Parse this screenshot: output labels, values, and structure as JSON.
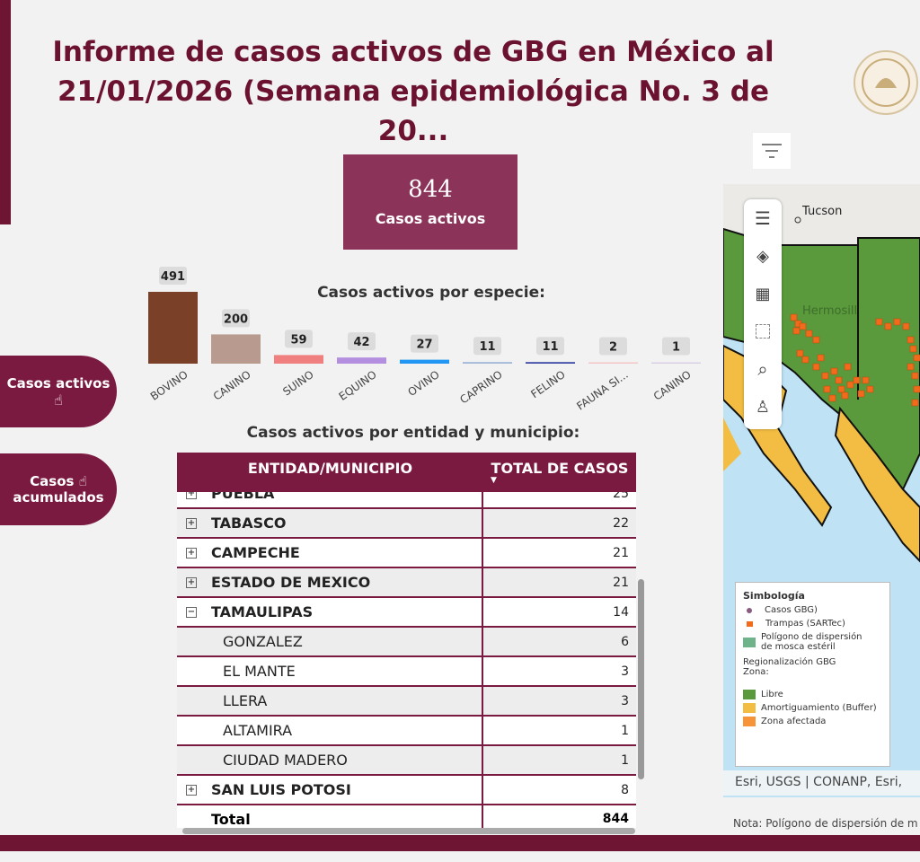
{
  "title": "Informe de casos activos de GBG en México al 21/01/2026 (Semana epidemiológica No. 3 de 20...",
  "title_line1": "Informe de casos activos de GBG en México al",
  "title_line2": "21/01/2026 (Semana epidemiológica No. 3 de 20...",
  "kpi": {
    "value": "844",
    "label": "Casos activos"
  },
  "buttons": {
    "active": "Casos activos",
    "accumulated_1": "Casos",
    "accumulated_2": "acumulados"
  },
  "chart_data": {
    "type": "bar",
    "title": "Casos activos por especie:",
    "categories": [
      "BOVINO",
      "CANINO",
      "SUINO",
      "EQUINO",
      "OVINO",
      "CAPRINO",
      "FELINO",
      "FAUNA SI...",
      "CANINO"
    ],
    "values": [
      491,
      200,
      59,
      42,
      27,
      11,
      11,
      2,
      1
    ],
    "colors": [
      "#7a4128",
      "#b89a8e",
      "#f08080",
      "#b48fe0",
      "#2196f3",
      "#9fb6d6",
      "#3f4aa8",
      "#f5c6c6",
      "#d9d0e6"
    ],
    "grid": false
  },
  "table": {
    "title": "Casos activos por entidad y municipio:",
    "headers": [
      "ENTIDAD/MUNICIPIO",
      "TOTAL DE CASOS"
    ],
    "rows": [
      {
        "name": "PUEBLA",
        "value": "25",
        "type": "state",
        "expand": "+"
      },
      {
        "name": "TABASCO",
        "value": "22",
        "type": "state",
        "expand": "+"
      },
      {
        "name": "CAMPECHE",
        "value": "21",
        "type": "state",
        "expand": "+"
      },
      {
        "name": "ESTADO DE MEXICO",
        "value": "21",
        "type": "state",
        "expand": "+"
      },
      {
        "name": "TAMAULIPAS",
        "value": "14",
        "type": "state",
        "expand": "−"
      },
      {
        "name": "GONZALEZ",
        "value": "6",
        "type": "muni"
      },
      {
        "name": "EL MANTE",
        "value": "3",
        "type": "muni"
      },
      {
        "name": "LLERA",
        "value": "3",
        "type": "muni"
      },
      {
        "name": "ALTAMIRA",
        "value": "1",
        "type": "muni"
      },
      {
        "name": "CIUDAD MADERO",
        "value": "1",
        "type": "muni"
      },
      {
        "name": "SAN LUIS POTOSI",
        "value": "8",
        "type": "state",
        "expand": "+"
      }
    ],
    "total_label": "Total",
    "total_value": "844"
  },
  "map": {
    "labels": {
      "tucson": "Tucson",
      "hermosillo": "Hermosill"
    },
    "legend": {
      "title": "Simbología",
      "casos": "Casos GBG)",
      "trampas": "Trampas (SARTec)",
      "poligono_1": "Polígono de dispersión",
      "poligono_2": "de mosca estéril",
      "region_1": "Regionalización GBG",
      "region_2": "Zona:",
      "libre": "Libre",
      "buffer": "Amortiguamiento (Buffer)",
      "afectada": "Zona afectada"
    },
    "attribution": "Esri, USGS | CONANP, Esri,",
    "colors": {
      "libre": "#5a9a3c",
      "buffer": "#f2bd42",
      "afectada": "#f7943a",
      "trampas": "#f26a1b",
      "sea": "#bfe3f5"
    }
  },
  "note": "Nota: Polígono de dispersión de m"
}
